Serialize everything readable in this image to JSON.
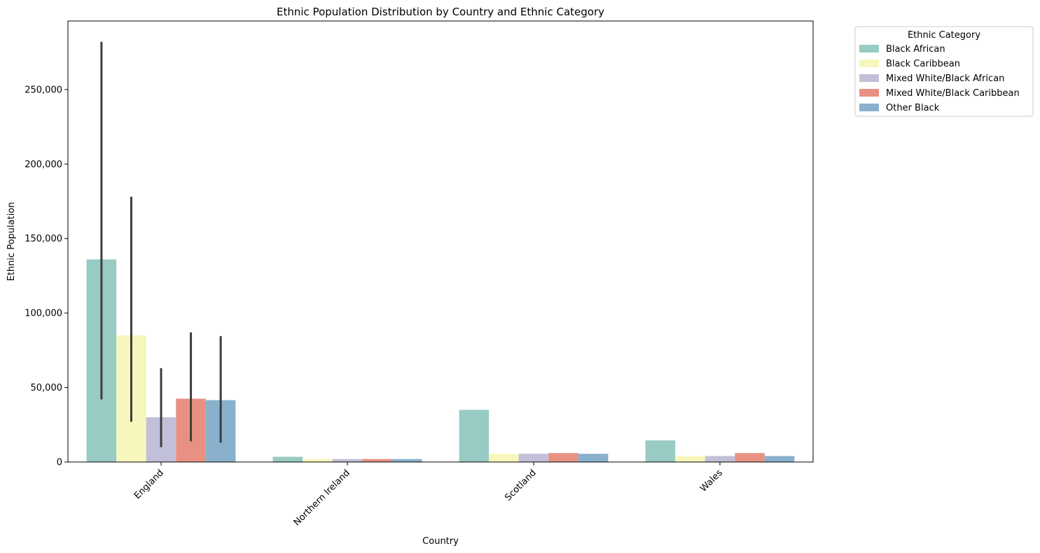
{
  "chart_data": {
    "type": "bar",
    "title": "Ethnic Population Distribution by Country and Ethnic Category",
    "xlabel": "Country",
    "ylabel": "Ethnic Population",
    "categories": [
      "England",
      "Northern Ireland",
      "Scotland",
      "Wales"
    ],
    "ylim": [
      0,
      296000
    ],
    "yticks": [
      0,
      50000,
      100000,
      150000,
      200000,
      250000
    ],
    "ytick_labels": [
      "0",
      "50,000",
      "100,000",
      "150,000",
      "200,000",
      "250,000"
    ],
    "legend": {
      "title": "Ethnic Category",
      "placement": "outside-top-right"
    },
    "grid": false,
    "series": [
      {
        "name": "Black African",
        "color": "#98cbc3",
        "values": [
          136000,
          3500,
          35000,
          14500
        ],
        "error_bars": [
          [
            42000,
            282000
          ],
          null,
          null,
          null
        ]
      },
      {
        "name": "Black Caribbean",
        "color": "#f7f7bd",
        "values": [
          85000,
          2000,
          5500,
          4000
        ],
        "error_bars": [
          [
            27000,
            178000
          ],
          null,
          null,
          null
        ]
      },
      {
        "name": "Mixed White/Black African",
        "color": "#c2c0d8",
        "values": [
          30000,
          2000,
          5500,
          4000
        ],
        "error_bars": [
          [
            10000,
            63000
          ],
          null,
          null,
          null
        ]
      },
      {
        "name": "Mixed White/Black Caribbean",
        "color": "#e89183",
        "values": [
          42500,
          2000,
          6000,
          6000
        ],
        "error_bars": [
          [
            14000,
            87000
          ],
          null,
          null,
          null
        ]
      },
      {
        "name": "Other Black",
        "color": "#89b1cd",
        "values": [
          41500,
          2000,
          5500,
          4000
        ],
        "error_bars": [
          [
            13000,
            84500
          ],
          null,
          null,
          null
        ]
      }
    ]
  }
}
